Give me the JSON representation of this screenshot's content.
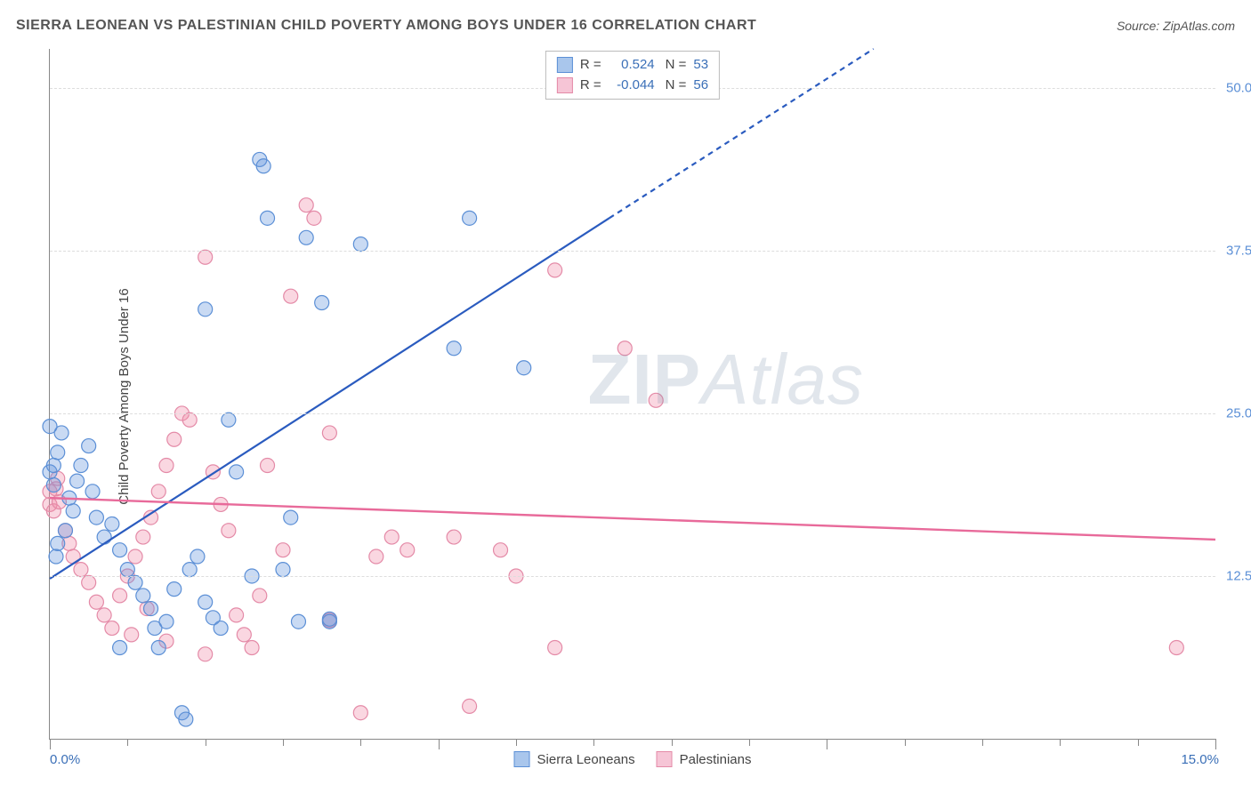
{
  "title": "SIERRA LEONEAN VS PALESTINIAN CHILD POVERTY AMONG BOYS UNDER 16 CORRELATION CHART",
  "source_prefix": "Source: ",
  "source_name": "ZipAtlas.com",
  "watermark": {
    "bold": "ZIP",
    "rest": "Atlas"
  },
  "chart": {
    "type": "scatter",
    "background_color": "#ffffff",
    "grid_color": "#dddddd",
    "axis_color": "#888888",
    "ylabel": "Child Poverty Among Boys Under 16",
    "ylabel_fontsize": 15,
    "xlim": [
      0,
      15
    ],
    "ylim": [
      0,
      53
    ],
    "xticks_major": [
      0,
      5,
      10,
      15
    ],
    "xticks_minor_step": 1,
    "xtick_label_left": "0.0%",
    "xtick_label_right": "15.0%",
    "yticks": [
      {
        "v": 12.5,
        "label": "12.5%"
      },
      {
        "v": 25.0,
        "label": "25.0%"
      },
      {
        "v": 37.5,
        "label": "37.5%"
      },
      {
        "v": 50.0,
        "label": "50.0%"
      }
    ],
    "series": [
      {
        "id": "sierra",
        "label": "Sierra Leoneans",
        "fill_color": "rgba(100,150,220,0.35)",
        "stroke_color": "#5b8fd6",
        "swatch_fill": "#a9c6ec",
        "swatch_border": "#5b8fd6",
        "marker_radius": 8,
        "marker_stroke_width": 1.2,
        "R": "0.524",
        "N": "53",
        "trend": {
          "color": "#2a5bbf",
          "width": 2.2,
          "x1": 0,
          "y1": 12.3,
          "x2_solid": 7.2,
          "y2_solid": 40.0,
          "x2_dash": 10.6,
          "y2_dash": 53.0
        },
        "points": [
          [
            0.05,
            19.5
          ],
          [
            0.0,
            20.5
          ],
          [
            0.05,
            21.0
          ],
          [
            0.1,
            22.0
          ],
          [
            0.15,
            23.5
          ],
          [
            0.0,
            24.0
          ],
          [
            0.08,
            14.0
          ],
          [
            0.1,
            15.0
          ],
          [
            0.2,
            16.0
          ],
          [
            0.3,
            17.5
          ],
          [
            0.25,
            18.5
          ],
          [
            0.35,
            19.8
          ],
          [
            0.4,
            21.0
          ],
          [
            0.5,
            22.5
          ],
          [
            0.55,
            19.0
          ],
          [
            0.6,
            17.0
          ],
          [
            0.7,
            15.5
          ],
          [
            0.8,
            16.5
          ],
          [
            0.9,
            14.5
          ],
          [
            1.0,
            13.0
          ],
          [
            1.1,
            12.0
          ],
          [
            1.2,
            11.0
          ],
          [
            1.3,
            10.0
          ],
          [
            1.35,
            8.5
          ],
          [
            1.4,
            7.0
          ],
          [
            1.5,
            9.0
          ],
          [
            1.6,
            11.5
          ],
          [
            1.8,
            13.0
          ],
          [
            1.9,
            14.0
          ],
          [
            2.0,
            10.5
          ],
          [
            2.1,
            9.3
          ],
          [
            2.2,
            8.5
          ],
          [
            2.3,
            24.5
          ],
          [
            2.4,
            20.5
          ],
          [
            2.6,
            12.5
          ],
          [
            2.0,
            33.0
          ],
          [
            2.7,
            44.5
          ],
          [
            2.75,
            44.0
          ],
          [
            2.8,
            40.0
          ],
          [
            3.0,
            13.0
          ],
          [
            3.1,
            17.0
          ],
          [
            3.2,
            9.0
          ],
          [
            3.3,
            38.5
          ],
          [
            3.5,
            33.5
          ],
          [
            3.6,
            9.0
          ],
          [
            1.7,
            2.0
          ],
          [
            1.75,
            1.5
          ],
          [
            0.9,
            7.0
          ],
          [
            4.0,
            38.0
          ],
          [
            5.4,
            40.0
          ],
          [
            5.2,
            30.0
          ],
          [
            6.1,
            28.5
          ],
          [
            3.6,
            9.2
          ]
        ]
      },
      {
        "id": "palestinian",
        "label": "Palestinians",
        "fill_color": "rgba(240,140,170,0.35)",
        "stroke_color": "#e48aa7",
        "swatch_fill": "#f6c5d6",
        "swatch_border": "#e48aa7",
        "marker_radius": 8,
        "marker_stroke_width": 1.2,
        "R": "-0.044",
        "N": "56",
        "trend": {
          "color": "#e86a9a",
          "width": 2.4,
          "x1": 0,
          "y1": 18.5,
          "x2_solid": 15.0,
          "y2_solid": 15.3,
          "x2_dash": 15.0,
          "y2_dash": 15.3
        },
        "points": [
          [
            0.0,
            18.0
          ],
          [
            0.0,
            19.0
          ],
          [
            0.05,
            17.5
          ],
          [
            0.08,
            19.2
          ],
          [
            0.1,
            20.0
          ],
          [
            0.12,
            18.2
          ],
          [
            0.2,
            16.0
          ],
          [
            0.25,
            15.0
          ],
          [
            0.3,
            14.0
          ],
          [
            0.4,
            13.0
          ],
          [
            0.5,
            12.0
          ],
          [
            0.6,
            10.5
          ],
          [
            0.7,
            9.5
          ],
          [
            0.8,
            8.5
          ],
          [
            0.9,
            11.0
          ],
          [
            1.0,
            12.5
          ],
          [
            1.1,
            14.0
          ],
          [
            1.2,
            15.5
          ],
          [
            1.3,
            17.0
          ],
          [
            1.4,
            19.0
          ],
          [
            1.5,
            21.0
          ],
          [
            1.6,
            23.0
          ],
          [
            1.7,
            25.0
          ],
          [
            1.8,
            24.5
          ],
          [
            2.0,
            37.0
          ],
          [
            2.1,
            20.5
          ],
          [
            2.2,
            18.0
          ],
          [
            2.3,
            16.0
          ],
          [
            2.4,
            9.5
          ],
          [
            2.5,
            8.0
          ],
          [
            2.6,
            7.0
          ],
          [
            2.8,
            21.0
          ],
          [
            3.0,
            14.5
          ],
          [
            3.1,
            34.0
          ],
          [
            3.3,
            41.0
          ],
          [
            3.4,
            40.0
          ],
          [
            3.6,
            23.5
          ],
          [
            3.6,
            9.1
          ],
          [
            4.0,
            2.0
          ],
          [
            4.2,
            14.0
          ],
          [
            4.4,
            15.5
          ],
          [
            4.6,
            14.5
          ],
          [
            5.2,
            15.5
          ],
          [
            5.4,
            2.5
          ],
          [
            5.8,
            14.5
          ],
          [
            6.0,
            12.5
          ],
          [
            6.5,
            7.0
          ],
          [
            6.5,
            36.0
          ],
          [
            7.4,
            30.0
          ],
          [
            7.8,
            26.0
          ],
          [
            2.0,
            6.5
          ],
          [
            1.5,
            7.5
          ],
          [
            1.05,
            8.0
          ],
          [
            1.25,
            10.0
          ],
          [
            14.5,
            7.0
          ],
          [
            2.7,
            11.0
          ]
        ]
      }
    ],
    "top_legend_labels": {
      "R": "R =",
      "N": "N ="
    },
    "title_color": "#555555",
    "tick_label_color": "#3a6fb7"
  }
}
